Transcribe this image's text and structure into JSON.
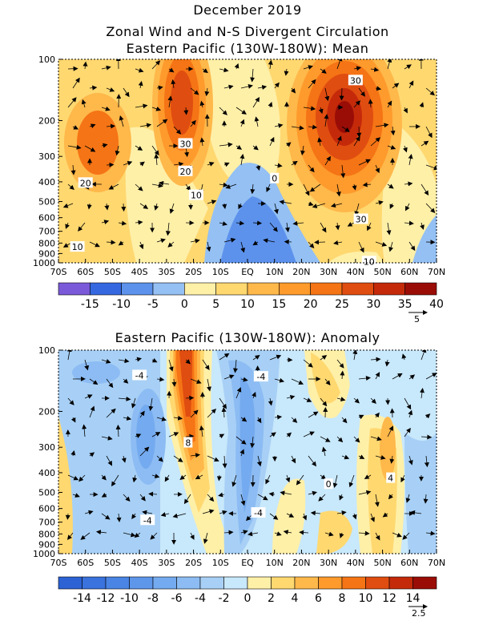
{
  "header": {
    "title": "December 2019",
    "subtitle1": "Zonal Wind and N-S Divergent Circulation",
    "subtitle2": "Eastern Pacific (130W-180W): Mean"
  },
  "chart_data": [
    {
      "type": "heatmap",
      "title": "Eastern Pacific (130W-180W): Mean",
      "x_ticks": [
        "70S",
        "60S",
        "50S",
        "40S",
        "30S",
        "20S",
        "10S",
        "EQ",
        "10N",
        "20N",
        "30N",
        "40N",
        "50N",
        "60N",
        "70N"
      ],
      "y_ticks": [
        "100",
        "200",
        "300",
        "400",
        "500",
        "600",
        "700",
        "800",
        "900",
        "1000"
      ],
      "xlim": [
        -70,
        70
      ],
      "ylim": [
        1000,
        100
      ],
      "y_scale": "log",
      "colorbar_labels": [
        "-15",
        "-10",
        "-5",
        "0",
        "5",
        "10",
        "15",
        "20",
        "25",
        "30",
        "35",
        "40"
      ],
      "colorbar_colors": [
        "#7a5ad8",
        "#3568e0",
        "#5c92ec",
        "#94c0f4",
        "#fff0a8",
        "#ffd870",
        "#ffb84a",
        "#ff9a2c",
        "#f57415",
        "#e04d10",
        "#c42a0a",
        "#9a0d07"
      ],
      "contour_labels": [
        {
          "text": "30",
          "lat": -23,
          "p": 260
        },
        {
          "text": "20",
          "lat": -23,
          "p": 355
        },
        {
          "text": "20",
          "lat": -60,
          "p": 405
        },
        {
          "text": "10",
          "lat": -19,
          "p": 465
        },
        {
          "text": "10",
          "lat": -63,
          "p": 835
        },
        {
          "text": "0",
          "lat": 10,
          "p": 385
        },
        {
          "text": "30",
          "lat": 40,
          "p": 127
        },
        {
          "text": "30",
          "lat": 42,
          "p": 610
        },
        {
          "text": "10",
          "lat": 45,
          "p": 985
        }
      ],
      "vector_ref_label": "5"
    },
    {
      "type": "heatmap",
      "title": "Eastern Pacific (130W-180W): Anomaly",
      "x_ticks": [
        "70S",
        "60S",
        "50S",
        "40S",
        "30S",
        "20S",
        "10S",
        "EQ",
        "10N",
        "20N",
        "30N",
        "40N",
        "50N",
        "60N",
        "70N"
      ],
      "y_ticks": [
        "100",
        "200",
        "300",
        "400",
        "500",
        "600",
        "700",
        "800",
        "900",
        "1000"
      ],
      "xlim": [
        -70,
        70
      ],
      "ylim": [
        1000,
        100
      ],
      "y_scale": "log",
      "colorbar_labels": [
        "-14",
        "-12",
        "-10",
        "-8",
        "-6",
        "-4",
        "-2",
        "0",
        "2",
        "4",
        "6",
        "8",
        "10",
        "12",
        "14"
      ],
      "colorbar_colors": [
        "#2c62d4",
        "#3a72de",
        "#4a84e4",
        "#5e96ea",
        "#74aaef",
        "#8cbcf3",
        "#a8d0f6",
        "#c8e8fb",
        "#fff0a8",
        "#ffd870",
        "#ffb84a",
        "#ff9a2c",
        "#f57415",
        "#e04d10",
        "#c42a0a",
        "#9a0d07"
      ],
      "contour_labels": [
        {
          "text": "-4",
          "lat": -40,
          "p": 133
        },
        {
          "text": "-4",
          "lat": 5,
          "p": 135
        },
        {
          "text": "8",
          "lat": -22,
          "p": 285
        },
        {
          "text": "-4",
          "lat": -37,
          "p": 685
        },
        {
          "text": "-4",
          "lat": 4,
          "p": 630
        },
        {
          "text": "0",
          "lat": 30,
          "p": 455
        },
        {
          "text": "4",
          "lat": 53,
          "p": 425
        }
      ],
      "vector_ref_label": "2.5"
    }
  ]
}
